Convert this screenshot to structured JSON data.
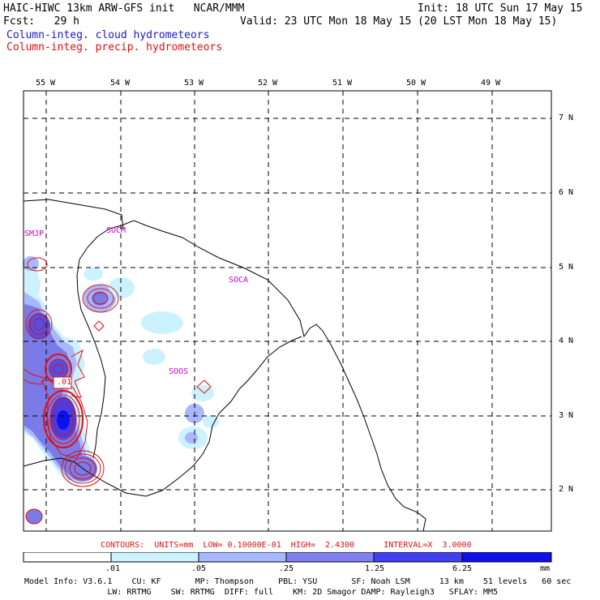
{
  "header": {
    "title": "HAIC-HIWC 13km ARW-GFS init   NCAR/MMM",
    "fcst": "Fcst:   29 h",
    "init": "Init: 18 UTC Sun 17 May 15",
    "valid": "Valid: 23 UTC Mon 18 May 15 (20 LST Mon 18 May 15)",
    "legend_cloud": "Column-integ. cloud hydrometeors",
    "legend_precip": "Column-integ. precip. hydrometeors"
  },
  "map": {
    "lon_labels": [
      "55 W",
      "54 W",
      "53 W",
      "52 W",
      "51 W",
      "50 W",
      "49 W"
    ],
    "lat_labels": [
      "7 N",
      "6 N",
      "5 N",
      "4 N",
      "3 N",
      "2 N"
    ],
    "stations": {
      "smjp": "SMJP",
      "socm": "SOCM",
      "soca": "SOCA",
      "soos": "SOOS"
    },
    "contour_value_label": ".01",
    "colors": {
      "cloud_fill_1": "#ccf2ff",
      "cloud_fill_2": "#a8b8ff",
      "cloud_fill_3": "#7a7ae8",
      "cloud_fill_4": "#4040f0",
      "cloud_fill_5": "#1010e8",
      "precip_contour": "#e01010",
      "station": "#cc00cc"
    }
  },
  "contours_line": "CONTOURS:  UNITS=mm  LOW= 0.10000E-01  HIGH=  2.4300      INTERVAL=X  3.0000",
  "colorbar": {
    "labels": [
      ".01",
      ".05",
      ".25",
      "1.25",
      "6.25"
    ],
    "unit": "mm"
  },
  "model_info": {
    "line1": "Model Info: V3.6.1    CU: KF       MP: Thompson     PBL: YSU       SF: Noah LSM      13 km    51 levels   60 sec",
    "line2": "                 LW: RRTMG    SW: RRTMG  DIFF: full    KM: 2D Smagor DAMP: Rayleigh3   SFLAY: MM5"
  }
}
